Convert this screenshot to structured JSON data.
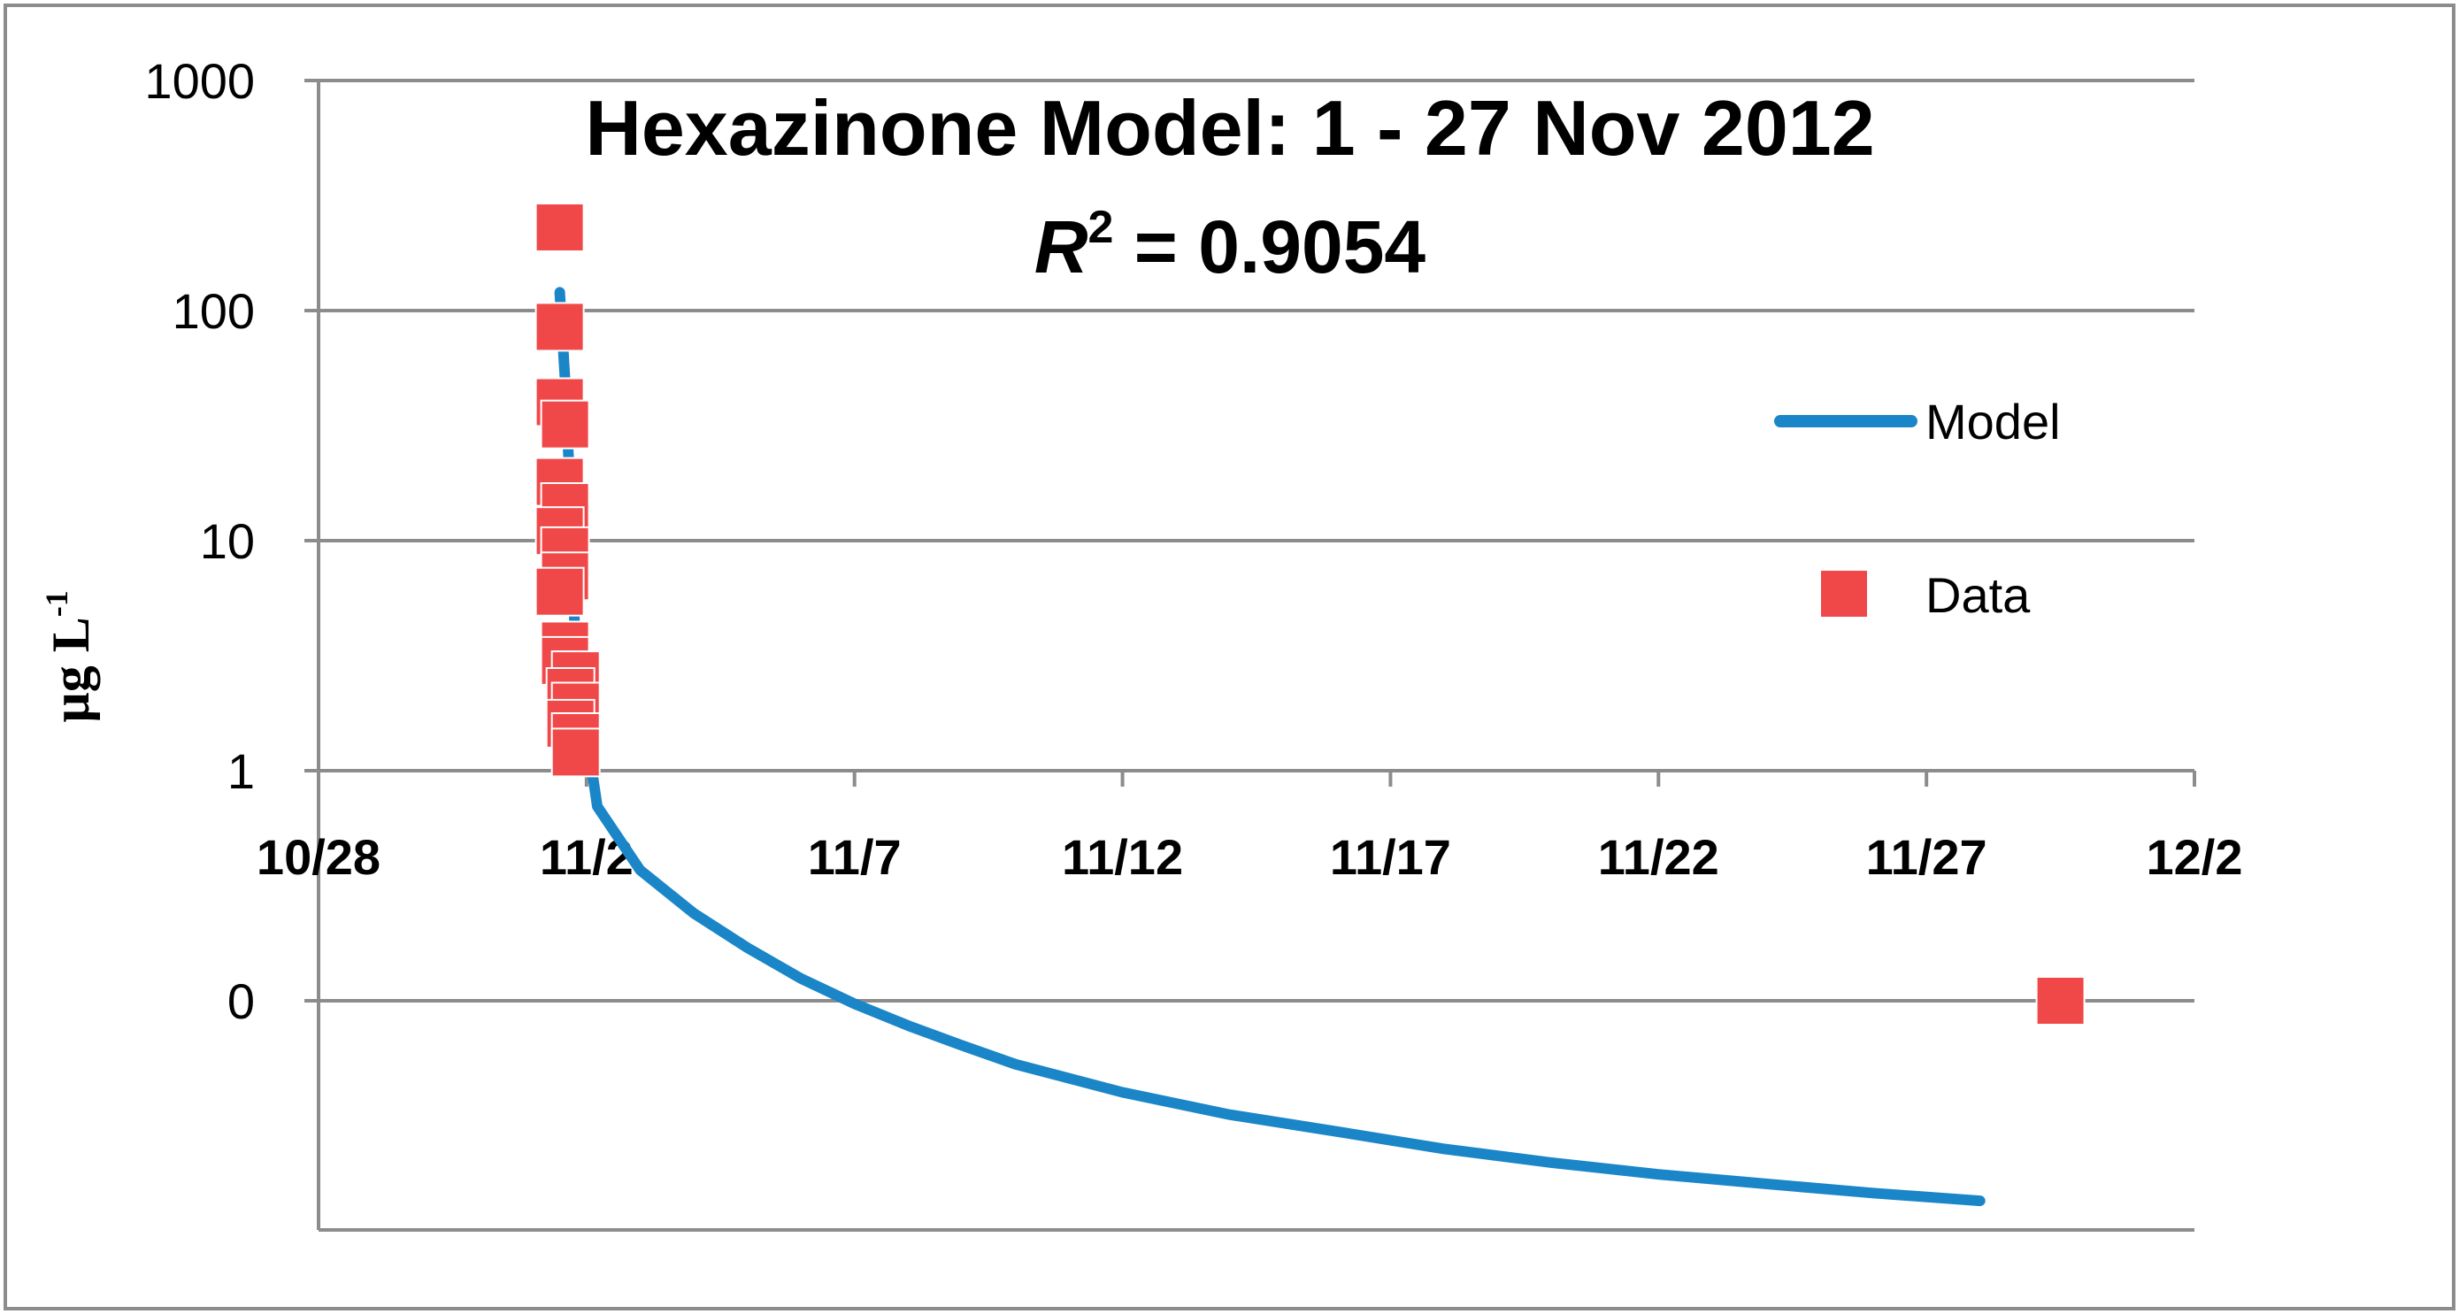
{
  "chart_data": {
    "type": "scatter",
    "title": "Hexazinone Model: 1 - 27 Nov 2012",
    "r_squared": {
      "symbol": "R",
      "superscript": "2",
      "text": " = 0.9054"
    },
    "ylabel": {
      "base": "µg L",
      "superscript": "-1"
    },
    "xlabel": "",
    "x_ticks": [
      "10/28",
      "11/2",
      "11/7",
      "11/12",
      "11/17",
      "11/22",
      "11/27",
      "12/2"
    ],
    "y_ticks": [
      "1000",
      "100",
      "10",
      "1",
      "0"
    ],
    "grid": true,
    "legend_position": "right",
    "colors": {
      "model": "#1a86c8",
      "data": "#f04848",
      "grid": "#8c8c8c"
    },
    "series": [
      {
        "name": "Model",
        "kind": "line",
        "x": [
          "11/1 12:00",
          "11/1 14:24",
          "11/1 16:48",
          "11/1 19:12",
          "11/2 04:48",
          "11/3 00:00",
          "11/4 00:00",
          "11/5 00:00",
          "11/6 00:00",
          "11/7 00:00",
          "11/8 00:00",
          "11/9 00:00",
          "11/10 00:00",
          "11/12 00:00",
          "11/14 00:00",
          "11/16 00:00",
          "11/18 00:00",
          "11/20 00:00",
          "11/22 00:00",
          "11/24 00:00",
          "11/26 00:00",
          "11/28 00:00"
        ],
        "y": [
          120,
          50,
          15,
          3,
          0.7,
          0.37,
          0.24,
          0.17,
          0.125,
          0.097,
          0.078,
          0.064,
          0.053,
          0.04,
          0.032,
          0.027,
          0.0227,
          0.0198,
          0.0176,
          0.016,
          0.0146,
          0.0135
        ]
      },
      {
        "name": "Data",
        "kind": "scatter",
        "x": [
          "11/1 12:00",
          "11/1 12:00",
          "11/1 12:00",
          "11/1 14:24",
          "11/1 12:00",
          "11/1 14:24",
          "11/1 12:00",
          "11/1 14:24",
          "11/1 14:24",
          "11/1 12:00",
          "11/1 14:24",
          "11/1 14:24",
          "11/1 19:12",
          "11/1 16:48",
          "11/1 19:12",
          "11/1 16:48",
          "11/1 19:12",
          "11/1 19:12",
          "11/29 12:00"
        ],
        "y": [
          230,
          85,
          40,
          32,
          18,
          14,
          11,
          9,
          7,
          6,
          3.5,
          3,
          2.6,
          2.2,
          1.9,
          1.6,
          1.4,
          1.2,
          0.1
        ]
      }
    ]
  }
}
